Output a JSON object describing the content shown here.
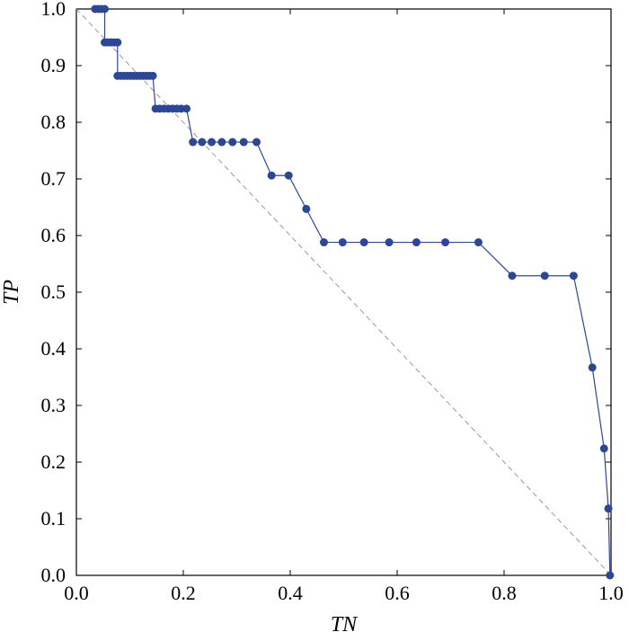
{
  "chart_data": {
    "type": "line",
    "title": "",
    "xlabel": "TN",
    "ylabel": "TP",
    "xlim": [
      0.0,
      1.0
    ],
    "ylim": [
      0.0,
      1.0
    ],
    "xticks": [
      "0.0",
      "0.2",
      "0.4",
      "0.6",
      "0.8",
      "1.0"
    ],
    "yticks": [
      "0.0",
      "0.1",
      "0.2",
      "0.3",
      "0.4",
      "0.5",
      "0.6",
      "0.7",
      "0.8",
      "0.9",
      "1.0"
    ],
    "grid": false,
    "legend": "none",
    "reference_line": {
      "from": [
        0.0,
        1.0
      ],
      "to": [
        1.0,
        0.0
      ],
      "style": "dashed",
      "color": "#999999"
    },
    "series": [
      {
        "color": "#2E4793",
        "points": [
          [
            0.035,
            1.0
          ],
          [
            0.041,
            1.0
          ],
          [
            0.047,
            1.0
          ],
          [
            0.053,
            1.0
          ],
          [
            0.053,
            0.941
          ],
          [
            0.059,
            0.941
          ],
          [
            0.065,
            0.941
          ],
          [
            0.071,
            0.941
          ],
          [
            0.077,
            0.941
          ],
          [
            0.077,
            0.882
          ],
          [
            0.083,
            0.882
          ],
          [
            0.089,
            0.882
          ],
          [
            0.095,
            0.882
          ],
          [
            0.101,
            0.882
          ],
          [
            0.107,
            0.882
          ],
          [
            0.113,
            0.882
          ],
          [
            0.119,
            0.882
          ],
          [
            0.125,
            0.882
          ],
          [
            0.131,
            0.882
          ],
          [
            0.137,
            0.882
          ],
          [
            0.143,
            0.882
          ],
          [
            0.148,
            0.824
          ],
          [
            0.156,
            0.824
          ],
          [
            0.164,
            0.824
          ],
          [
            0.172,
            0.824
          ],
          [
            0.18,
            0.824
          ],
          [
            0.188,
            0.824
          ],
          [
            0.196,
            0.824
          ],
          [
            0.206,
            0.824
          ],
          [
            0.218,
            0.765
          ],
          [
            0.235,
            0.765
          ],
          [
            0.253,
            0.765
          ],
          [
            0.272,
            0.765
          ],
          [
            0.292,
            0.765
          ],
          [
            0.313,
            0.765
          ],
          [
            0.337,
            0.765
          ],
          [
            0.365,
            0.706
          ],
          [
            0.397,
            0.706
          ],
          [
            0.43,
            0.647
          ],
          [
            0.463,
            0.588
          ],
          [
            0.498,
            0.588
          ],
          [
            0.538,
            0.588
          ],
          [
            0.585,
            0.588
          ],
          [
            0.636,
            0.588
          ],
          [
            0.69,
            0.588
          ],
          [
            0.752,
            0.588
          ],
          [
            0.815,
            0.529
          ],
          [
            0.876,
            0.529
          ],
          [
            0.93,
            0.529
          ],
          [
            0.965,
            0.367
          ],
          [
            0.987,
            0.224
          ],
          [
            0.995,
            0.118
          ],
          [
            0.998,
            0.0
          ]
        ]
      }
    ]
  }
}
